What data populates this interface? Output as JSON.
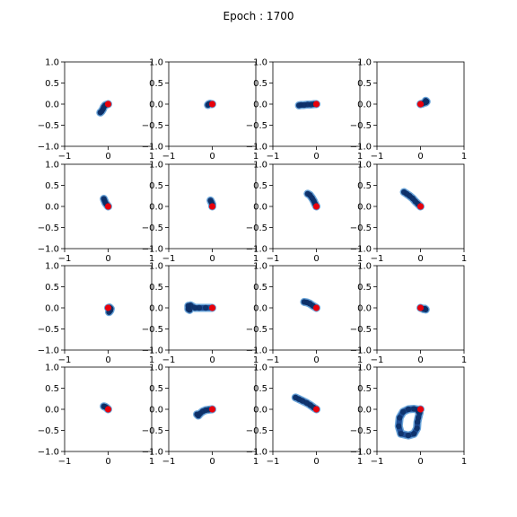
{
  "title": "Epoch : 1700",
  "colors": {
    "trail": "#1f4e96",
    "trail_light": "#5b9bd5",
    "trail_dark": "#0d2f66",
    "origin": "#e8000b"
  },
  "chart_data": {
    "type": "scatter",
    "title": "Epoch : 1700",
    "xlim": [
      -1,
      1
    ],
    "ylim": [
      -1,
      1
    ],
    "xticks": [
      -1,
      0,
      1
    ],
    "yticks": [
      1.0,
      0.5,
      0.0,
      -0.5,
      -1.0
    ],
    "xtick_labels": [
      "−1",
      "0",
      "1"
    ],
    "ytick_labels": [
      "1.0",
      "0.5",
      "0.0",
      "−0.5",
      "−1.0"
    ],
    "grid": false,
    "rows": 4,
    "cols": 4,
    "origin_marker": {
      "x": 0,
      "y": 0,
      "color": "#e8000b"
    },
    "panels": [
      {
        "points": [
          [
            -0.18,
            -0.2
          ],
          [
            -0.15,
            -0.17
          ],
          [
            -0.12,
            -0.12
          ],
          [
            -0.1,
            -0.07
          ],
          [
            -0.07,
            -0.03
          ],
          [
            -0.03,
            -0.01
          ],
          [
            0,
            0
          ]
        ]
      },
      {
        "points": [
          [
            -0.1,
            -0.02
          ],
          [
            -0.08,
            0.0
          ],
          [
            -0.05,
            0.01
          ],
          [
            -0.02,
            0.0
          ],
          [
            0,
            0
          ]
        ]
      },
      {
        "points": [
          [
            -0.4,
            -0.03
          ],
          [
            -0.35,
            -0.02
          ],
          [
            -0.28,
            -0.02
          ],
          [
            -0.2,
            -0.01
          ],
          [
            -0.12,
            -0.01
          ],
          [
            -0.05,
            0.0
          ],
          [
            0,
            0
          ]
        ]
      },
      {
        "points": [
          [
            0.12,
            0.08
          ],
          [
            0.14,
            0.06
          ],
          [
            0.12,
            0.04
          ],
          [
            0.08,
            0.03
          ],
          [
            0.04,
            0.01
          ],
          [
            0,
            0
          ]
        ]
      },
      {
        "points": [
          [
            -0.1,
            0.18
          ],
          [
            -0.08,
            0.13
          ],
          [
            -0.06,
            0.08
          ],
          [
            -0.03,
            0.04
          ],
          [
            0,
            0
          ]
        ]
      },
      {
        "points": [
          [
            -0.04,
            0.14
          ],
          [
            -0.02,
            0.1
          ],
          [
            0,
            0.05
          ],
          [
            0,
            0
          ]
        ]
      },
      {
        "points": [
          [
            -0.2,
            0.3
          ],
          [
            -0.15,
            0.27
          ],
          [
            -0.1,
            0.2
          ],
          [
            -0.06,
            0.13
          ],
          [
            -0.03,
            0.06
          ],
          [
            0,
            0
          ]
        ]
      },
      {
        "points": [
          [
            -0.38,
            0.34
          ],
          [
            -0.32,
            0.3
          ],
          [
            -0.25,
            0.25
          ],
          [
            -0.18,
            0.19
          ],
          [
            -0.12,
            0.12
          ],
          [
            -0.06,
            0.06
          ],
          [
            0,
            0
          ]
        ]
      },
      {
        "points": [
          [
            0.02,
            -0.1
          ],
          [
            0.05,
            -0.06
          ],
          [
            0.06,
            -0.02
          ],
          [
            0.03,
            0.01
          ],
          [
            0,
            0
          ]
        ]
      },
      {
        "points": [
          [
            -0.55,
            0.05
          ],
          [
            -0.55,
            -0.03
          ],
          [
            -0.52,
            -0.05
          ],
          [
            -0.5,
            0.06
          ],
          [
            -0.4,
            0.0
          ],
          [
            -0.3,
            0.0
          ],
          [
            -0.15,
            0.0
          ],
          [
            0,
            0
          ]
        ]
      },
      {
        "points": [
          [
            -0.28,
            0.14
          ],
          [
            -0.22,
            0.13
          ],
          [
            -0.15,
            0.1
          ],
          [
            -0.08,
            0.05
          ],
          [
            0,
            0
          ]
        ]
      },
      {
        "points": [
          [
            0.12,
            -0.04
          ],
          [
            0.1,
            -0.02
          ],
          [
            0.07,
            -0.03
          ],
          [
            0.03,
            -0.01
          ],
          [
            0,
            0
          ]
        ]
      },
      {
        "points": [
          [
            -0.1,
            0.07
          ],
          [
            -0.07,
            0.06
          ],
          [
            -0.04,
            0.04
          ],
          [
            0,
            0
          ]
        ]
      },
      {
        "points": [
          [
            -0.35,
            -0.12
          ],
          [
            -0.32,
            -0.15
          ],
          [
            -0.28,
            -0.1
          ],
          [
            -0.22,
            -0.05
          ],
          [
            -0.15,
            -0.02
          ],
          [
            -0.08,
            -0.01
          ],
          [
            0,
            0
          ]
        ]
      },
      {
        "points": [
          [
            -0.48,
            0.28
          ],
          [
            -0.4,
            0.24
          ],
          [
            -0.32,
            0.2
          ],
          [
            -0.22,
            0.15
          ],
          [
            -0.14,
            0.1
          ],
          [
            -0.06,
            0.04
          ],
          [
            0,
            0
          ]
        ]
      },
      {
        "points": [
          [
            -0.05,
            -0.05
          ],
          [
            -0.02,
            -0.08
          ],
          [
            -0.05,
            -0.2
          ],
          [
            -0.07,
            -0.3
          ],
          [
            -0.08,
            -0.45
          ],
          [
            -0.15,
            -0.58
          ],
          [
            -0.28,
            -0.62
          ],
          [
            -0.45,
            -0.58
          ],
          [
            -0.5,
            -0.4
          ],
          [
            -0.48,
            -0.2
          ],
          [
            -0.4,
            -0.06
          ],
          [
            -0.28,
            0.0
          ],
          [
            -0.15,
            0.01
          ],
          [
            -0.05,
            -0.01
          ],
          [
            0,
            0
          ]
        ]
      }
    ]
  }
}
